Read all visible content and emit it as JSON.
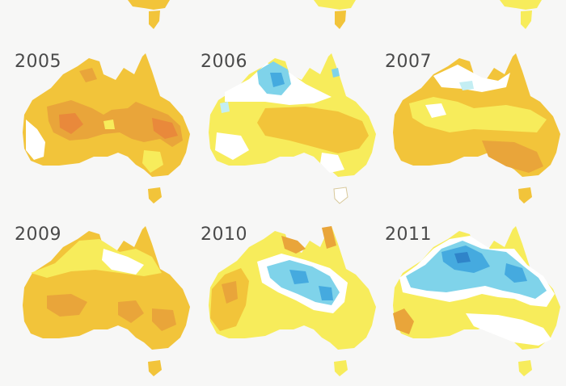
{
  "panels": [
    {
      "year": "2005",
      "scheme": "hot"
    },
    {
      "year": "2006",
      "scheme": "cool-north"
    },
    {
      "year": "2007",
      "scheme": "warm"
    },
    {
      "year": "2009",
      "scheme": "warm"
    },
    {
      "year": "2010",
      "scheme": "cool-centre"
    },
    {
      "year": "2011",
      "scheme": "cool-north-strong"
    }
  ],
  "colors": {
    "background": "#f7f7f6",
    "land_neutral": "#ffffff",
    "warm_light": "#f7ec5b",
    "warm_mid": "#f2c43a",
    "warm_strong": "#e9a53a",
    "warm_extreme": "#e9893b",
    "cool_light": "#c4eef3",
    "cool_mid": "#7fd3ea",
    "cool_strong": "#45aadf",
    "outline": "#d8c89a"
  }
}
